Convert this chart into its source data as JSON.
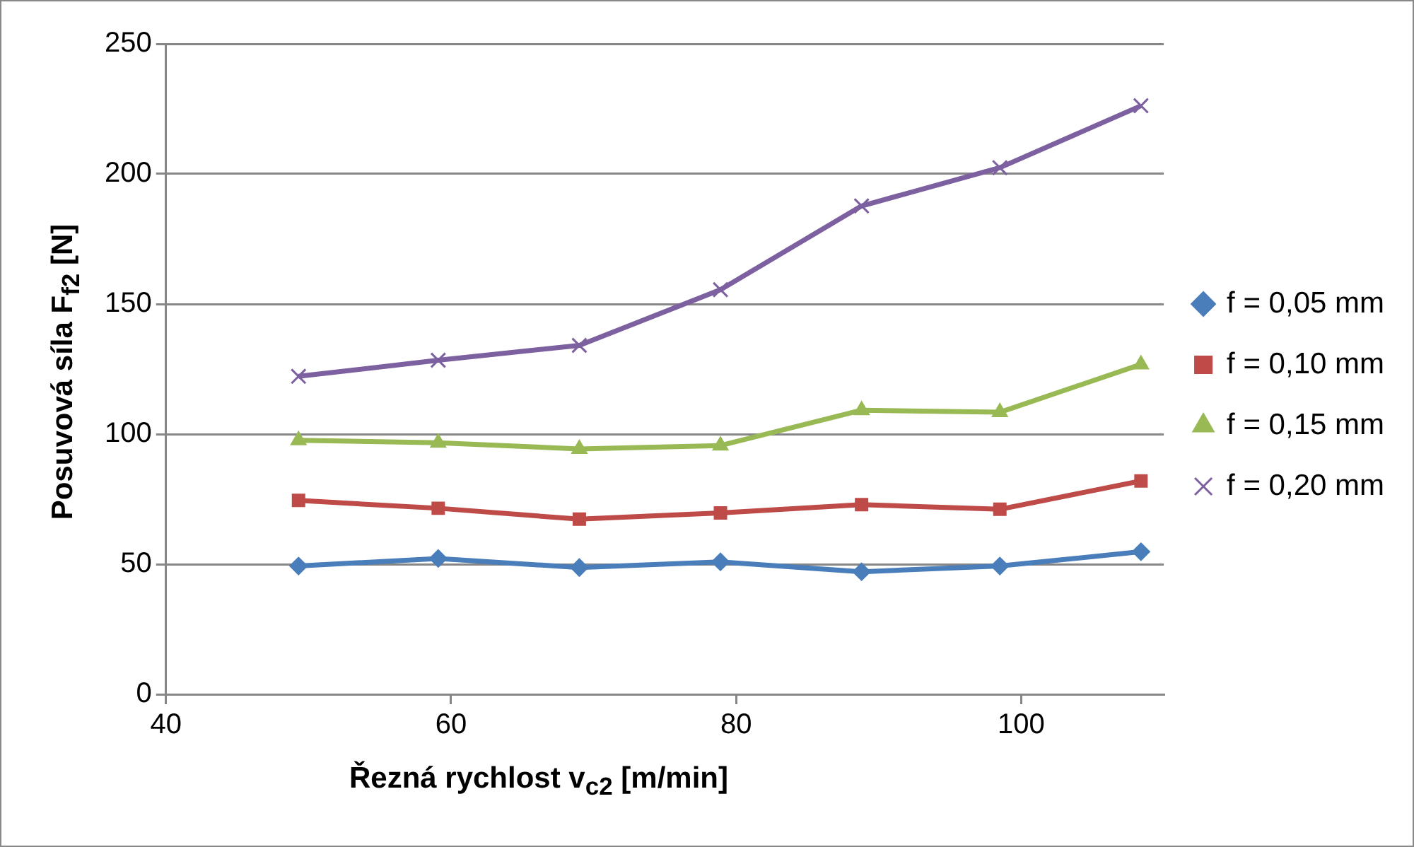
{
  "chart_data": {
    "type": "line",
    "xlabel": "Řezná rychlost v$_{c2}$ [m/min]",
    "ylabel": "Posuvová síla F$_{f2}$ [N]",
    "x": [
      49.3,
      59.1,
      69.0,
      78.9,
      88.8,
      98.5,
      108.4
    ],
    "series": [
      {
        "name": "f = 0,05 mm",
        "color": "#4a7ebb",
        "marker": "diamond",
        "values": [
          49.3,
          52.2,
          48.7,
          50.9,
          47.1,
          49.3,
          54.8
        ]
      },
      {
        "name": "f = 0,10 mm",
        "color": "#be4b48",
        "marker": "square",
        "values": [
          74.5,
          71.5,
          67.3,
          69.7,
          72.9,
          71.1,
          82.0
        ]
      },
      {
        "name": "f = 0,15 mm",
        "color": "#98b954",
        "marker": "triangle",
        "values": [
          97.6,
          96.7,
          94.3,
          95.6,
          109.2,
          108.4,
          126.8
        ]
      },
      {
        "name": "f = 0,20 mm",
        "color": "#7d60a0",
        "marker": "cross",
        "values": [
          122.2,
          128.4,
          134.1,
          155.5,
          187.7,
          202.4,
          226.2
        ]
      }
    ],
    "xlim": [
      40,
      110
    ],
    "xticks": [
      40,
      60,
      80,
      100
    ],
    "ylim": [
      0,
      250
    ],
    "yticks": [
      0,
      50,
      100,
      150,
      200,
      250
    ],
    "grid": "y",
    "legend": "right"
  }
}
